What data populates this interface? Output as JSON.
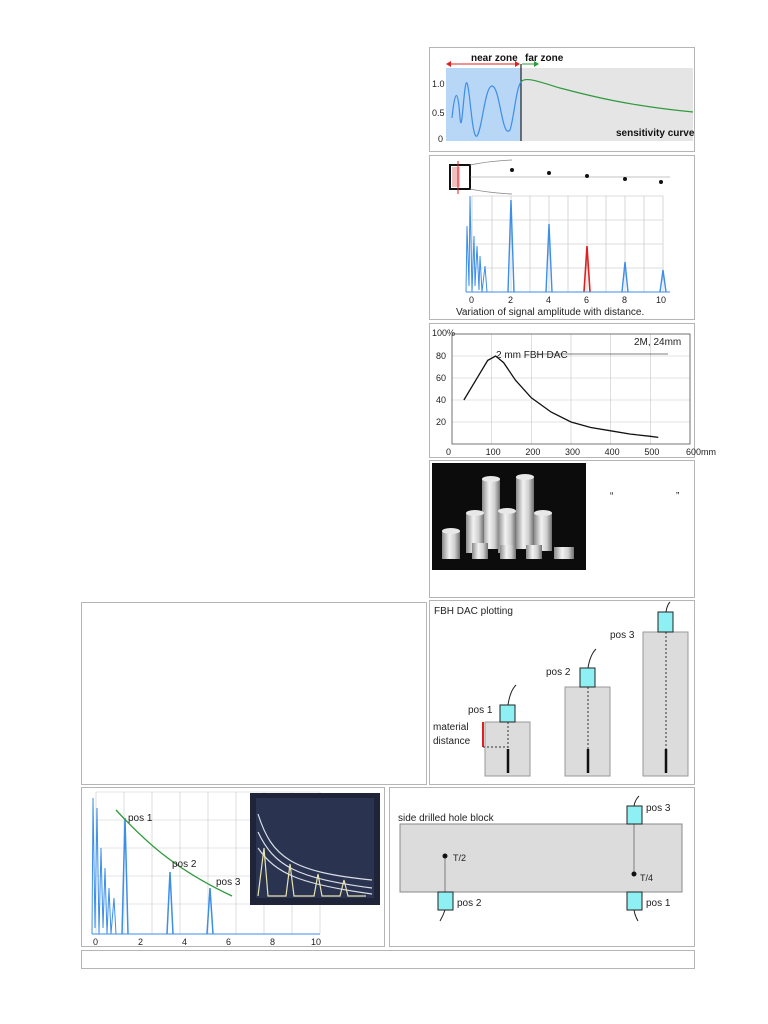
{
  "panel1": {
    "near_zone": "near zone",
    "far_zone": "far zone",
    "y_ticks": [
      "1.0",
      "0.5",
      "0"
    ],
    "caption": "sensitivity curve"
  },
  "panel2": {
    "x_ticks": [
      "0",
      "2",
      "4",
      "6",
      "8",
      "10"
    ],
    "caption": "Variation of signal amplitude with distance."
  },
  "panel3": {
    "chart_data": {
      "type": "line",
      "series": [
        {
          "name": "2 mm FBH DAC",
          "x": [
            30,
            60,
            90,
            110,
            130,
            160,
            200,
            250,
            300,
            350,
            400,
            450,
            500,
            520
          ],
          "y": [
            40,
            58,
            76,
            80,
            74,
            58,
            42,
            29,
            20,
            15,
            12,
            9,
            7,
            6
          ]
        }
      ],
      "x_ticks": [
        "0",
        "100",
        "200",
        "300",
        "400",
        "500",
        "600mm"
      ],
      "y_ticks": [
        "20",
        "40",
        "60",
        "80",
        "100%"
      ],
      "xlim": [
        0,
        600
      ],
      "ylim": [
        0,
        100
      ],
      "grid": true,
      "annotation": "2M, 24mm"
    }
  },
  "panel4": {
    "quote1": "“",
    "quote2": "”"
  },
  "panel6": {
    "title": "FBH DAC plotting",
    "pos1": "pos 1",
    "pos2": "pos 2",
    "pos3": "pos 3",
    "material_1": "material",
    "material_2": "distance"
  },
  "panel7": {
    "x_ticks": [
      "0",
      "2",
      "4",
      "6",
      "8",
      "10"
    ],
    "pos1": "pos 1",
    "pos2": "pos 2",
    "pos3": "pos 3"
  },
  "panel8": {
    "title": "side drilled hole block",
    "pos1": "pos 1",
    "pos2": "pos 2",
    "pos3": "pos 3",
    "t2": "T/2",
    "t4": "T/4"
  },
  "colors": {
    "signal_blue": "#3c8ee8",
    "curve_green": "#2f9a3c",
    "marker_red": "#e02020",
    "probe_cyan": "#8ff0f4",
    "block_gray": "#dcdcdc"
  }
}
